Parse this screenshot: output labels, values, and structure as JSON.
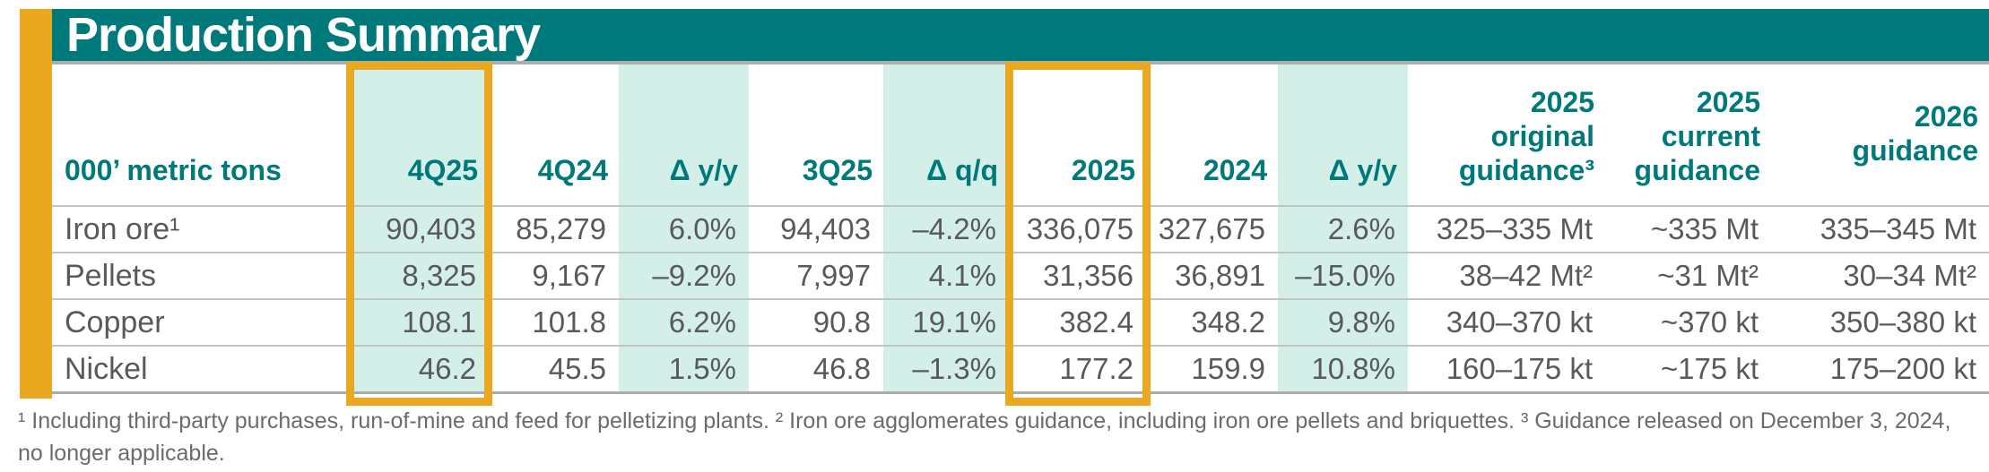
{
  "title": "Production Summary",
  "theme": {
    "teal": "#00797B",
    "light_teal": "#D4EFE8",
    "gold": "#E9A820",
    "data_text_gray": "#58595B",
    "footnote_gray": "#6A6B6D"
  },
  "table": {
    "unit_header": "000’ metric tons",
    "columns": [
      "4Q25",
      "4Q24",
      "Δ y/y",
      "3Q25",
      "Δ q/q",
      "2025",
      "2024",
      "Δ y/y",
      "2025\noriginal\nguidance³",
      "2025\ncurrent\nguidance",
      "2026\nguidance"
    ],
    "highlighted_columns": [
      "4Q25",
      "2025"
    ],
    "rows": [
      {
        "label": "Iron ore¹",
        "values": [
          "90,403",
          "85,279",
          "6.0%",
          "94,403",
          "–4.2%",
          "336,075",
          "327,675",
          "2.6%",
          "325–335 Mt",
          "~335 Mt",
          "335–345 Mt"
        ]
      },
      {
        "label": "Pellets",
        "values": [
          "8,325",
          "9,167",
          "–9.2%",
          "7,997",
          "4.1%",
          "31,356",
          "36,891",
          "–15.0%",
          "38–42 Mt²",
          "~31 Mt²",
          "30–34 Mt²"
        ]
      },
      {
        "label": "Copper",
        "values": [
          "108.1",
          "101.8",
          "6.2%",
          "90.8",
          "19.1%",
          "382.4",
          "348.2",
          "9.8%",
          "340–370 kt",
          "~370 kt",
          "350–380 kt"
        ]
      },
      {
        "label": "Nickel",
        "values": [
          "46.2",
          "45.5",
          "1.5%",
          "46.8",
          "–1.3%",
          "177.2",
          "159.9",
          "10.8%",
          "160–175 kt",
          "~175 kt",
          "175–200 kt"
        ]
      }
    ]
  },
  "footnote": "¹ Including third-party purchases, run-of-mine and feed for pelletizing plants. ² Iron ore agglomerates guidance, including iron ore pellets and briquettes. ³ Guidance released on December 3, 2024, no longer applicable."
}
